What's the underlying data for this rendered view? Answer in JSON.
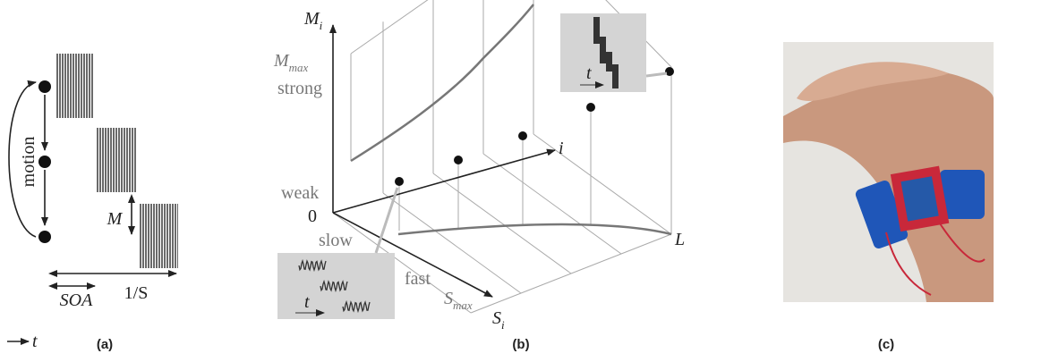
{
  "panel_a": {
    "motion": "motion",
    "m": "M",
    "soa": "SOA",
    "inv_s": "1/S",
    "t": "t",
    "caption": "(a)"
  },
  "panel_b": {
    "m_axis": {
      "base": "M",
      "sub": "i"
    },
    "m_max": {
      "base": "M",
      "sub": "max"
    },
    "strong": "strong",
    "weak": "weak",
    "zero": "0",
    "slow": "slow",
    "fast": "fast",
    "s_max": {
      "base": "S",
      "sub": "max"
    },
    "s_axis": {
      "base": "S",
      "sub": "i"
    },
    "i_axis": "i",
    "l": "L",
    "inset_top_t": "t",
    "inset_bottom_t": "t",
    "caption": "(b)"
  },
  "panel_c": {
    "caption": "(c)"
  }
}
